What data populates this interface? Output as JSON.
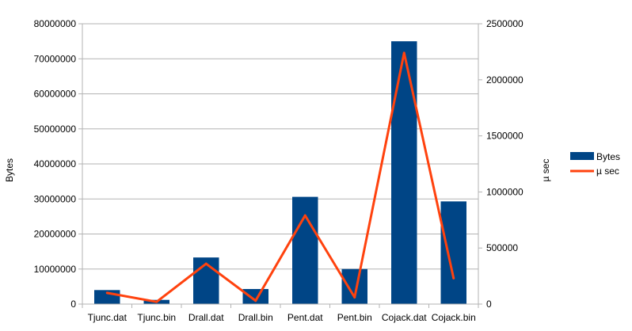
{
  "chart_data": {
    "type": "bar",
    "categories": [
      "Tjunc.dat",
      "Tjunc.bin",
      "Drall.dat",
      "Drall.bin",
      "Pent.dat",
      "Pent.bin",
      "Cojack.dat",
      "Cojack.bin"
    ],
    "series": [
      {
        "name": "Bytes",
        "type": "bar",
        "axis": "left",
        "color": "#004586",
        "values": [
          4000000,
          1200000,
          13300000,
          4300000,
          30600000,
          10000000,
          75000000,
          29300000
        ]
      },
      {
        "name": "µ sec",
        "type": "line",
        "axis": "right",
        "color": "#ff420e",
        "values": [
          100000,
          20000,
          360000,
          30000,
          790000,
          60000,
          2240000,
          230000
        ]
      }
    ],
    "ylabel": "Bytes",
    "y2label": "µ sec",
    "ylim": [
      0,
      80000000
    ],
    "y2lim": [
      0,
      2500000
    ],
    "yticks": [
      "0",
      "10000000",
      "20000000",
      "30000000",
      "40000000",
      "50000000",
      "60000000",
      "70000000",
      "80000000"
    ],
    "y2ticks": [
      "0",
      "500000",
      "1000000",
      "1500000",
      "2000000",
      "2500000"
    ],
    "grid": true,
    "legend": "right"
  }
}
